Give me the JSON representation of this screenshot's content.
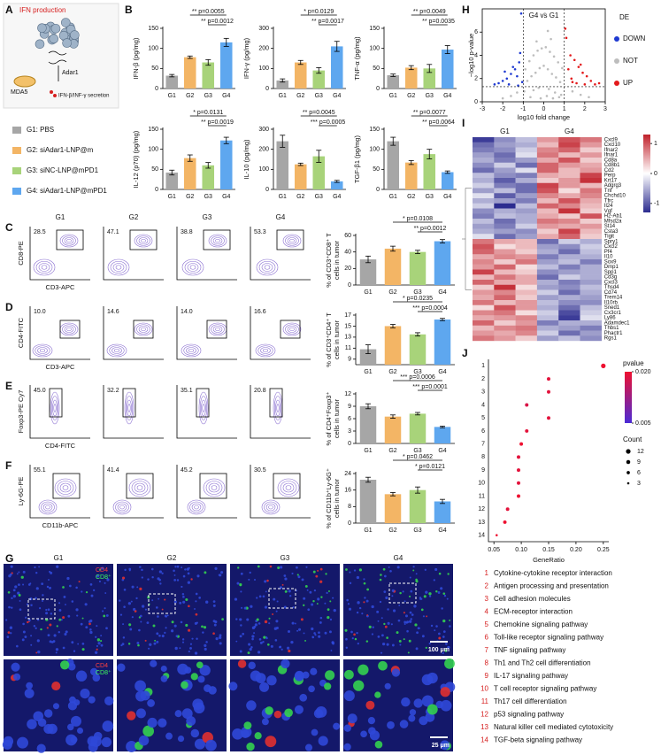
{
  "panel_labels": [
    "A",
    "B",
    "C",
    "D",
    "E",
    "F",
    "G",
    "H",
    "I",
    "J"
  ],
  "panel_a": {
    "title": "IFN production",
    "gene": "Adar1",
    "sensor": "MDA5",
    "output": "IFN-β/INF-γ secretion"
  },
  "groups": [
    {
      "name": "G1: PBS",
      "color": "#a6a6a6"
    },
    {
      "name": "G2: siAdar1-LNP@m",
      "color": "#f3b565"
    },
    {
      "name": "G3: siNC-LNP@mPD1",
      "color": "#a8d37a"
    },
    {
      "name": "G4: siAdar1-LNP@mPD1",
      "color": "#5ea7ef"
    }
  ],
  "flow": {
    "groups": [
      "G1",
      "G2",
      "G3",
      "G4"
    ],
    "rows": [
      {
        "ylabel": "CD8-PE",
        "xlabel": "CD3-APC",
        "percents": [
          "28.5",
          "47.1",
          "38.8",
          "53.3"
        ]
      },
      {
        "ylabel": "CD4-FITC",
        "xlabel": "CD3-APC",
        "percents": [
          "10.0",
          "14.6",
          "14.0",
          "16.6"
        ]
      },
      {
        "ylabel": "Foxp3-PE Cy7",
        "xlabel": "CD4-FITC",
        "percents": [
          "45.0",
          "32.2",
          "35.1",
          "20.8"
        ]
      },
      {
        "ylabel": "Ly-6G-PE",
        "xlabel": "CD11b-APC",
        "percents": [
          "55.1",
          "41.4",
          "45.2",
          "30.5"
        ]
      }
    ]
  },
  "panel_g": {
    "groups": [
      "G1",
      "G2",
      "G3",
      "G4"
    ],
    "stain_labels": [
      "CD4",
      "CD8⁺"
    ],
    "scale_bars": [
      "100 μm",
      "25 μm"
    ]
  },
  "chart_data": [
    {
      "type": "bar",
      "ylabel": "IFN-β (pg/mg)",
      "categories": [
        "G1",
        "G2",
        "G3",
        "G4"
      ],
      "values": [
        32,
        78,
        65,
        115
      ],
      "errors": [
        3,
        3,
        7,
        10
      ],
      "ylim": [
        0,
        150
      ],
      "yticks": [
        0,
        50,
        100,
        150
      ],
      "significance": [
        "** p=0.0055",
        "** p=0.0012"
      ]
    },
    {
      "type": "bar",
      "ylabel": "IFN-γ (pg/mg)",
      "categories": [
        "G1",
        "G2",
        "G3",
        "G4"
      ],
      "values": [
        40,
        130,
        90,
        210
      ],
      "errors": [
        8,
        10,
        14,
        25
      ],
      "ylim": [
        0,
        300
      ],
      "yticks": [
        0,
        100,
        200,
        300
      ],
      "significance": [
        "* p=0.0129",
        "** p=0.0017"
      ]
    },
    {
      "type": "bar",
      "ylabel": "TNF-α (pg/mg)",
      "categories": [
        "G1",
        "G2",
        "G3",
        "G4"
      ],
      "values": [
        33,
        52,
        50,
        97
      ],
      "errors": [
        3,
        5,
        10,
        10
      ],
      "ylim": [
        0,
        150
      ],
      "yticks": [
        0,
        50,
        100,
        150
      ],
      "significance": [
        "** p=0.0049",
        "** p=0.0035"
      ]
    },
    {
      "type": "bar",
      "ylabel": "IL-12 (p70) (pg/mg)",
      "categories": [
        "G1",
        "G2",
        "G3",
        "G4"
      ],
      "values": [
        42,
        78,
        60,
        122
      ],
      "errors": [
        6,
        8,
        7,
        8
      ],
      "ylim": [
        0,
        150
      ],
      "yticks": [
        0,
        50,
        100,
        150
      ],
      "significance": [
        "* p=0.0131",
        "** p=0.0019"
      ]
    },
    {
      "type": "bar",
      "ylabel": "IL-10 (pg/mg)",
      "categories": [
        "G1",
        "G2",
        "G3",
        "G4"
      ],
      "values": [
        240,
        125,
        165,
        40
      ],
      "errors": [
        30,
        6,
        30,
        5
      ],
      "ylim": [
        0,
        300
      ],
      "yticks": [
        0,
        100,
        200,
        300
      ],
      "significance": [
        "** p=0.0045",
        "*** p=0.0005"
      ]
    },
    {
      "type": "bar",
      "ylabel": "TGF-β1 (pg/mg)",
      "categories": [
        "G1",
        "G2",
        "G3",
        "G4"
      ],
      "values": [
        120,
        67,
        88,
        43
      ],
      "errors": [
        10,
        5,
        12,
        3
      ],
      "ylim": [
        0,
        150
      ],
      "yticks": [
        0,
        50,
        100,
        150
      ],
      "significance": [
        "** p=0.0077",
        "** p=0.0064"
      ]
    },
    {
      "type": "bar",
      "ylabel": [
        "% of CD3⁺CD8⁺ T",
        "cells in tumor"
      ],
      "categories": [
        "G1",
        "G2",
        "G3",
        "G4"
      ],
      "values": [
        31,
        44,
        40,
        53
      ],
      "errors": [
        4,
        3,
        2,
        2
      ],
      "ylim": [
        0,
        60
      ],
      "yticks": [
        0,
        20,
        40,
        60
      ],
      "significance": [
        "* p=0.0108",
        "** p=0.0012"
      ]
    },
    {
      "type": "bar",
      "ylabel": [
        "% of CD3⁺CD4⁺ T",
        "cells in tumor"
      ],
      "categories": [
        "G1",
        "G2",
        "G3",
        "G4"
      ],
      "values": [
        10.8,
        15.0,
        13.5,
        16.2
      ],
      "errors": [
        0.8,
        0.3,
        0.3,
        0.2
      ],
      "ylim": [
        8,
        17
      ],
      "yticks": [
        9,
        11,
        13,
        15,
        17
      ],
      "significance": [
        "* p=0.0235",
        "*** p=0.0004"
      ]
    },
    {
      "type": "bar",
      "ylabel": [
        "% of CD4⁺Foxp3⁺",
        "cells in tumor"
      ],
      "categories": [
        "G1",
        "G2",
        "G3",
        "G4"
      ],
      "values": [
        9.0,
        6.5,
        7.2,
        4.0
      ],
      "errors": [
        0.6,
        0.4,
        0.3,
        0.2
      ],
      "ylim": [
        0,
        12
      ],
      "yticks": [
        0,
        3,
        6,
        9,
        12
      ],
      "significance": [
        "*** p=0.0006",
        "*** p=0.0001"
      ]
    },
    {
      "type": "bar",
      "ylabel": [
        "% of CD11b⁺Ly-6G⁺",
        "cells in tumor"
      ],
      "categories": [
        "G1",
        "G2",
        "G3",
        "G4"
      ],
      "values": [
        21,
        14,
        16,
        10.5
      ],
      "errors": [
        1.2,
        0.8,
        1.5,
        1.0
      ],
      "ylim": [
        0,
        24
      ],
      "yticks": [
        0,
        8,
        16,
        24
      ],
      "significance": [
        "* p=0.0462",
        "* p=0.0121"
      ]
    },
    {
      "type": "volcano",
      "title": "G4 vs G1",
      "xlabel": "log10 fold change",
      "ylabel": "−log10 p-value",
      "legend_title": "DE",
      "xlim": [
        -3,
        3
      ],
      "xticks": [
        -3,
        -2,
        -1,
        0,
        1,
        2,
        3
      ],
      "ylim": [
        0,
        8
      ],
      "yticks": [
        0,
        2,
        4,
        6
      ],
      "vlines": [
        -1,
        1
      ],
      "hline": 1.3,
      "series": [
        {
          "name": "DOWN",
          "color": "#1f3ad1",
          "x": [
            -1.1,
            -1.2,
            -1.4,
            -1.6,
            -1.8,
            -2.0,
            -2.2,
            -1.3,
            -1.5,
            -1.7,
            -1.05,
            -1.25,
            -1.9,
            -2.4,
            -1.15
          ],
          "y": [
            7.6,
            3.4,
            2.8,
            2.4,
            2.0,
            1.8,
            1.6,
            2.2,
            3.0,
            1.5,
            1.7,
            1.4,
            2.6,
            1.5,
            4.2
          ]
        },
        {
          "name": "NOT",
          "color": "#bdbdbd",
          "x": [
            -0.9,
            -0.7,
            -0.5,
            -0.3,
            -0.1,
            0.1,
            0.3,
            0.5,
            0.7,
            0.9,
            -0.8,
            -0.6,
            -0.4,
            -0.2,
            0,
            0.2,
            0.4,
            0.6,
            0.8,
            -0.95,
            -0.5,
            -0.25,
            0.25,
            0.55,
            0.85,
            -0.65,
            -0.15,
            0.15,
            0.45,
            0.75,
            -1.3,
            -1.6,
            1.4,
            1.8,
            -2.0,
            2.2,
            0.05,
            -0.35,
            0.35,
            0.2
          ],
          "y": [
            2.8,
            3.5,
            4.0,
            4.4,
            4.6,
            4.7,
            4.3,
            3.9,
            3.4,
            2.9,
            1.8,
            2.2,
            2.5,
            2.9,
            3.1,
            2.8,
            2.4,
            2.1,
            1.7,
            0.9,
            1.0,
            1.2,
            1.1,
            0.8,
            0.6,
            0.4,
            0.3,
            0.5,
            0.3,
            0.4,
            0.8,
            0.5,
            0.9,
            0.6,
            0.3,
            0.4,
            7.6,
            5.2,
            5.4,
            6.1
          ]
        },
        {
          "name": "UP",
          "color": "#e31a1c",
          "x": [
            1.1,
            1.3,
            1.5,
            1.7,
            1.9,
            2.1,
            2.3,
            1.2,
            1.4,
            1.6,
            1.8,
            2.5,
            1.05,
            1.35,
            2.0,
            2.7
          ],
          "y": [
            5.5,
            4.0,
            3.6,
            3.0,
            2.5,
            2.2,
            1.8,
            2.8,
            1.7,
            1.6,
            3.2,
            1.5,
            6.3,
            2.0,
            1.5,
            1.6
          ]
        }
      ]
    },
    {
      "type": "heatmap",
      "columns": [
        "G1",
        "G4"
      ],
      "zlim": [
        -1.3,
        1.3
      ],
      "zticks": [
        1,
        0,
        -1
      ],
      "rows": [
        "Cxcl9",
        "Cxcl10",
        "Ifnar2",
        "Ifnar1",
        "Cd8a",
        "Cd8b1",
        "Cd2",
        "Perp",
        "Krt17",
        "Adgrg3",
        "Tnf",
        "Chchd10",
        "Tfrc",
        "Il24",
        "Vgf",
        "H2-Ab1",
        "Mfsd2a",
        "St14",
        "Csta3",
        "Tigit",
        "Spry1",
        "Cxcl2",
        "Pf4",
        "Il10",
        "Sox9",
        "Dmp1",
        "Spp1",
        "Cd3g",
        "Cxcl3",
        "Thsd4",
        "Cd74",
        "Trem14",
        "Il10rb",
        "Sned1",
        "Cx3cr1",
        "Ly86",
        "Adamdec1",
        "Thbs1",
        "Phactr1",
        "Rgs1"
      ],
      "values": [
        [
          -1.2,
          -0.7,
          -0.4,
          0.6,
          1.0,
          0.8
        ],
        [
          -0.9,
          -0.6,
          -0.5,
          0.4,
          1.1,
          0.6
        ],
        [
          -0.8,
          -0.7,
          -0.3,
          0.7,
          0.9,
          0.3
        ],
        [
          -0.6,
          -0.9,
          -0.2,
          0.8,
          0.4,
          0.6
        ],
        [
          -0.5,
          -0.8,
          -0.6,
          0.5,
          1.0,
          0.3
        ],
        [
          -0.7,
          -0.3,
          -0.9,
          0.9,
          0.6,
          0.5
        ],
        [
          -0.9,
          -0.6,
          -0.2,
          0.9,
          0.4,
          0.6
        ],
        [
          -0.4,
          -0.7,
          -0.8,
          0.5,
          0.4,
          1.1
        ],
        [
          -0.5,
          -1.0,
          -0.5,
          0.3,
          0.6,
          1.2
        ],
        [
          -0.3,
          -0.8,
          -0.9,
          1.1,
          0.6,
          0.4
        ],
        [
          -0.6,
          -0.4,
          -0.9,
          1.0,
          0.2,
          0.8
        ],
        [
          -0.2,
          -1.0,
          -0.6,
          0.7,
          0.5,
          0.7
        ],
        [
          -0.5,
          -0.6,
          -0.8,
          0.4,
          1.0,
          0.5
        ],
        [
          -0.3,
          -1.3,
          -0.4,
          0.9,
          0.7,
          0.4
        ],
        [
          -0.7,
          -0.5,
          -0.6,
          0.4,
          1.2,
          0.3
        ],
        [
          -0.8,
          -0.4,
          -0.5,
          0.5,
          0.3,
          1.0
        ],
        [
          -0.4,
          -0.9,
          -0.5,
          0.8,
          0.7,
          0.3
        ],
        [
          -0.6,
          -0.8,
          -0.3,
          0.6,
          0.5,
          0.6
        ],
        [
          -0.5,
          -0.6,
          -0.7,
          0.3,
          1.1,
          0.4
        ],
        [
          -0.2,
          -0.9,
          -0.6,
          0.5,
          0.9,
          0.3
        ],
        [
          0.8,
          0.5,
          0.4,
          -0.9,
          -0.3,
          -0.5
        ],
        [
          1.0,
          0.2,
          0.4,
          -0.6,
          -0.7,
          -0.3
        ],
        [
          0.9,
          0.6,
          0.3,
          -0.5,
          -0.9,
          -0.4
        ],
        [
          0.5,
          0.7,
          0.6,
          -0.8,
          -0.5,
          -0.5
        ],
        [
          0.7,
          0.3,
          0.8,
          -0.6,
          -0.4,
          -0.8
        ],
        [
          0.6,
          0.9,
          0.2,
          -0.4,
          -0.8,
          -0.5
        ],
        [
          1.1,
          0.4,
          0.3,
          -0.7,
          -0.6,
          -0.5
        ],
        [
          0.4,
          0.8,
          0.5,
          -0.9,
          -0.3,
          -0.5
        ],
        [
          0.9,
          0.5,
          0.5,
          -0.5,
          -0.8,
          -0.6
        ],
        [
          0.3,
          1.2,
          0.2,
          -0.6,
          -0.7,
          -0.4
        ],
        [
          0.6,
          0.7,
          0.4,
          -0.3,
          -0.9,
          -0.5
        ],
        [
          0.5,
          0.9,
          0.3,
          -0.6,
          -0.5,
          -0.6
        ],
        [
          0.8,
          0.4,
          0.6,
          -0.4,
          -0.7,
          -0.7
        ],
        [
          0.2,
          1.0,
          0.6,
          -0.5,
          -0.9,
          -0.4
        ],
        [
          0.7,
          0.8,
          0.2,
          -0.3,
          -1.1,
          -0.3
        ],
        [
          0.5,
          0.6,
          0.7,
          -0.4,
          -1.2,
          -0.2
        ],
        [
          0.9,
          0.3,
          0.6,
          -0.8,
          -0.5,
          -0.5
        ],
        [
          0.4,
          0.7,
          0.8,
          -0.5,
          -0.6,
          -0.8
        ],
        [
          0.6,
          0.5,
          0.7,
          -0.3,
          -0.9,
          -0.6
        ],
        [
          0.8,
          0.6,
          0.3,
          -0.6,
          -0.4,
          -0.7
        ]
      ]
    },
    {
      "type": "dot",
      "xlabel": "GeneRatio",
      "categories": [
        "1",
        "2",
        "3",
        "4",
        "5",
        "6",
        "7",
        "8",
        "9",
        "10",
        "11",
        "12",
        "13",
        "14"
      ],
      "values": [
        0.25,
        0.15,
        0.15,
        0.11,
        0.15,
        0.11,
        0.1,
        0.095,
        0.095,
        0.095,
        0.095,
        0.075,
        0.07,
        0.055
      ],
      "sizes": [
        12,
        7,
        7,
        7,
        7,
        7,
        7,
        7,
        7,
        7,
        7,
        7,
        7,
        3
      ],
      "pvalues": [
        0.02,
        0.019,
        0.019,
        0.018,
        0.019,
        0.019,
        0.02,
        0.019,
        0.019,
        0.019,
        0.02,
        0.019,
        0.02,
        0.02
      ],
      "xlim": [
        0.04,
        0.26
      ],
      "xticks": [
        0.05,
        {
          "value": 0.1,
          "label": "0.10"
        },
        0.15,
        {
          "value": 0.2,
          "label": "0.20"
        },
        0.25
      ],
      "color_title": "pvalue",
      "clim": [
        0.005,
        0.02
      ],
      "cticks": [
        {
          "value": 0.02,
          "label": "0.020"
        },
        0.005
      ],
      "size_title": "Count",
      "size_ticks": [
        12,
        9,
        6,
        3
      ],
      "pathways": [
        "Cytokine-cytokine receptor interaction",
        "Antigen processing and presentation",
        "Cell adhesion molecules",
        "ECM-receptor interaction",
        "Chemokine signaling pathway",
        "Toll-like receptor signaling pathway",
        "TNF signaling pathway",
        "Th1 and Th2 cell differentiation",
        "IL-17 signaling pathway",
        "T cell receptor signaling pathway",
        "Th17 cell differentiation",
        "p53 signaling pathway",
        "Natural killer cell mediated cytotoxicity",
        "TGF-beta signaling pathway"
      ]
    }
  ]
}
